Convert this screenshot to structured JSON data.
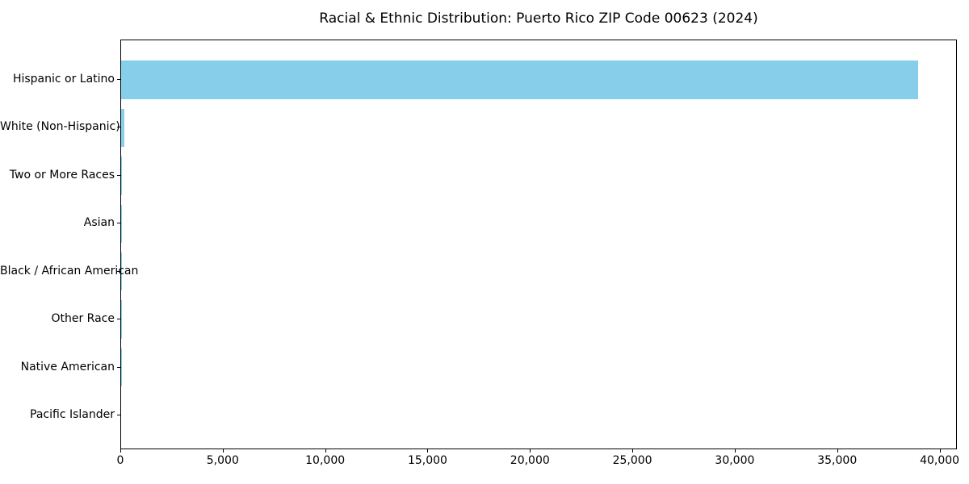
{
  "chart_data": {
    "type": "bar",
    "orientation": "horizontal",
    "title": "Racial & Ethnic Distribution: Puerto Rico ZIP Code 00623 (2024)",
    "categories": [
      "Hispanic or Latino",
      "White (Non-Hispanic)",
      "Two or More Races",
      "Asian",
      "Black / African American",
      "Other Race",
      "Native American",
      "Pacific Islander"
    ],
    "values": [
      38900,
      160,
      45,
      30,
      20,
      12,
      5,
      0
    ],
    "bar_color": "#87CEEB",
    "axis_color": "#000000",
    "text_color": "#000000",
    "background_color": "#ffffff",
    "xlabel": "",
    "ylabel": "",
    "xlim": [
      0,
      40845
    ],
    "xticks": [
      0,
      5000,
      10000,
      15000,
      20000,
      25000,
      30000,
      35000,
      40000
    ],
    "xtick_labels": [
      "0",
      "5,000",
      "10,000",
      "15,000",
      "20,000",
      "25,000",
      "30,000",
      "35,000",
      "40,000"
    ],
    "grid": false,
    "legend": null
  }
}
